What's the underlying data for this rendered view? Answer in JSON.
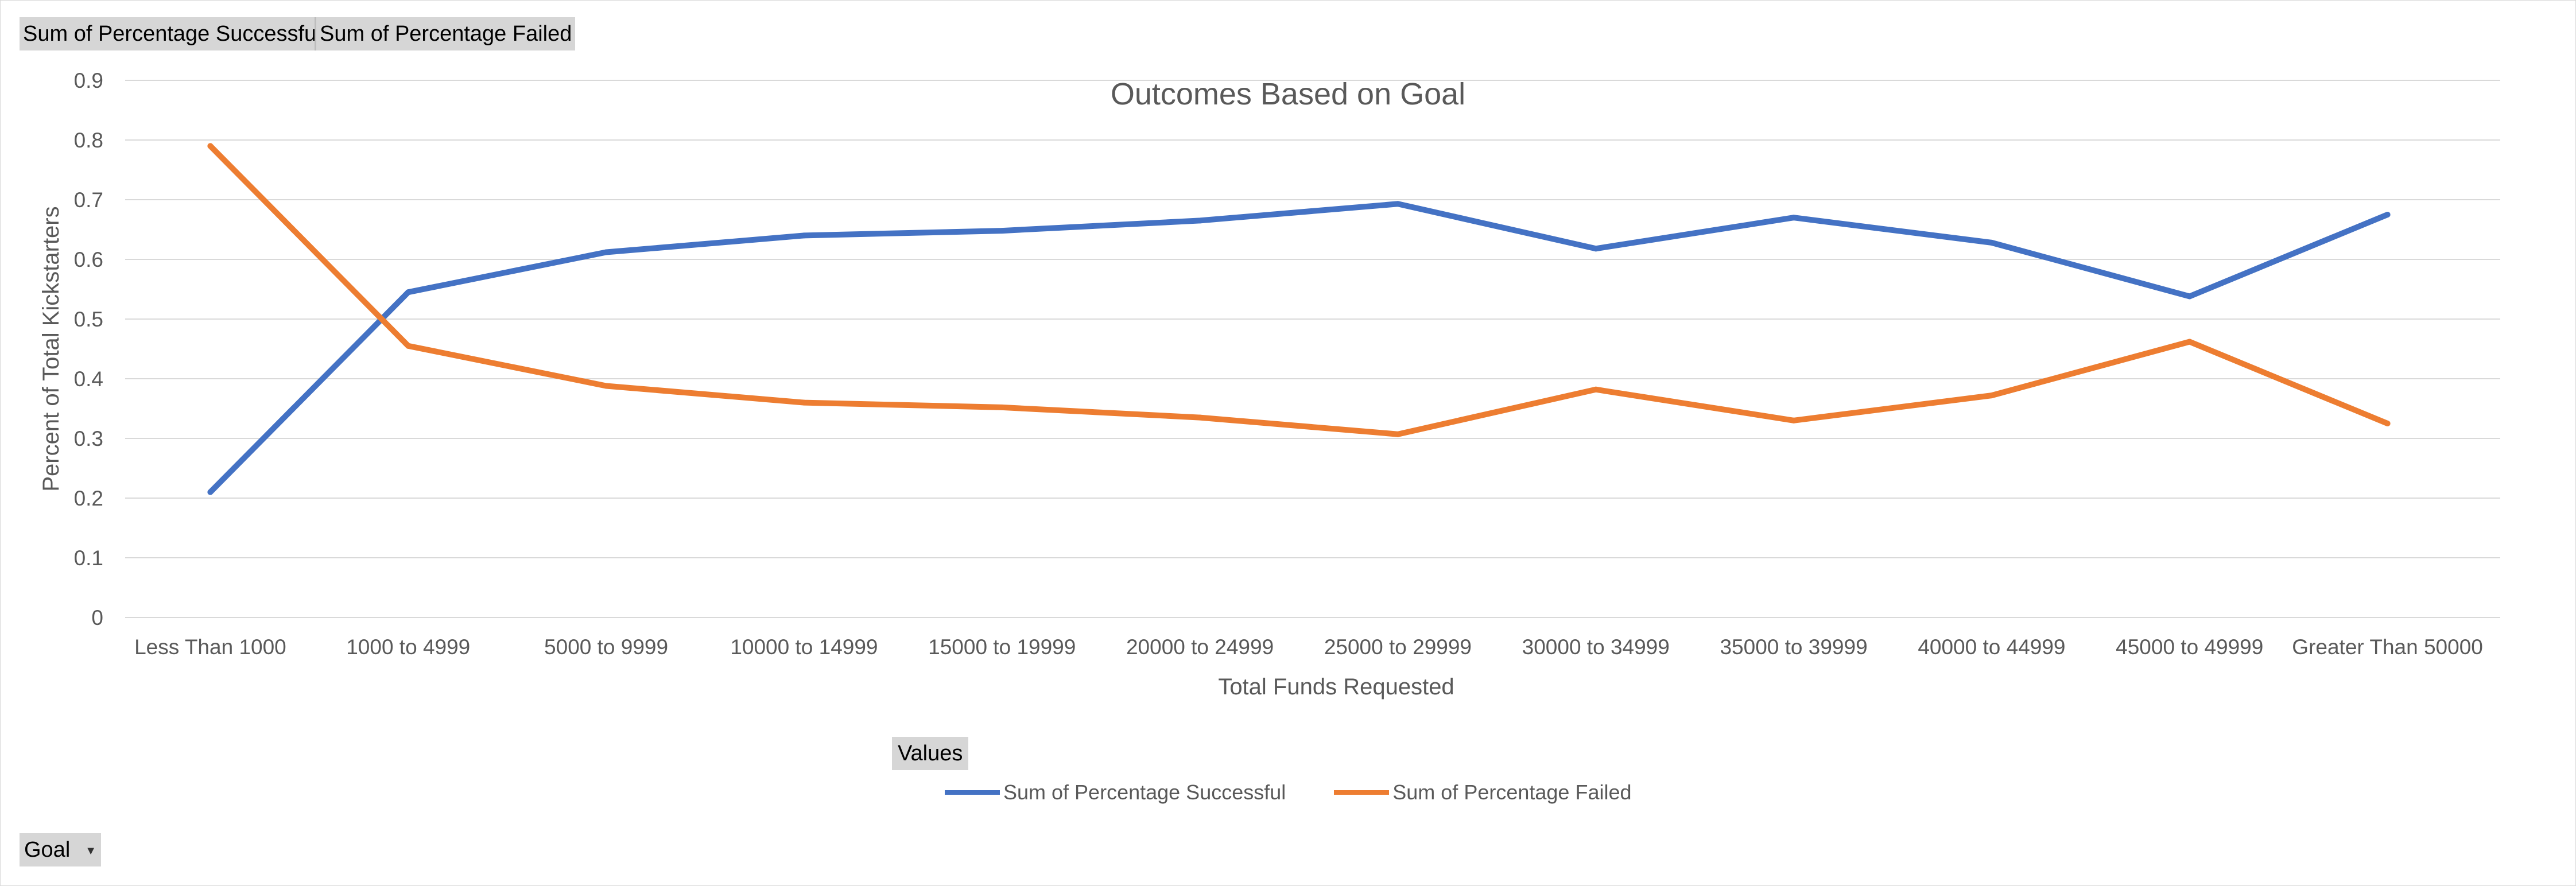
{
  "pivot_buttons": {
    "value_fields": [
      "Sum of Percentage  Successful",
      "Sum of Percentage  Failed"
    ],
    "values_label": "Values",
    "row_field_label": "Goal",
    "row_field_dropdown_icon": "dropdown-arrow-icon"
  },
  "colors": {
    "successful": "#4472C4",
    "failed": "#ED7D31",
    "gridline": "#d9d9d9",
    "text": "#595959"
  },
  "chart_data": {
    "type": "line",
    "title": "Outcomes Based on Goal",
    "xlabel": "Total Funds Requested",
    "ylabel": "Percent of Total Kickstarters",
    "categories": [
      "Less Than 1000",
      "1000 to 4999",
      "5000 to 9999",
      "10000 to 14999",
      "15000 to 19999",
      "20000 to 24999",
      "25000 to 29999",
      "30000 to 34999",
      "35000 to 39999",
      "40000 to 44999",
      "45000 to 49999",
      "Greater Than 50000"
    ],
    "ylim": [
      0,
      0.9
    ],
    "yticks": [
      0,
      0.1,
      0.2,
      0.3,
      0.4,
      0.5,
      0.6,
      0.7,
      0.8,
      0.9
    ],
    "ytick_labels": [
      "0",
      "0.1",
      "0.2",
      "0.3",
      "0.4",
      "0.5",
      "0.6",
      "0.7",
      "0.8",
      "0.9"
    ],
    "grid": true,
    "legend_position": "bottom",
    "series": [
      {
        "name": "Sum of Percentage Successful",
        "color": "#4472C4",
        "values": [
          0.21,
          0.545,
          0.612,
          0.64,
          0.648,
          0.665,
          0.693,
          0.618,
          0.67,
          0.628,
          0.538,
          0.675
        ]
      },
      {
        "name": "Sum of Percentage Failed",
        "color": "#ED7D31",
        "values": [
          0.79,
          0.455,
          0.388,
          0.36,
          0.352,
          0.335,
          0.307,
          0.382,
          0.33,
          0.372,
          0.462,
          0.325
        ]
      }
    ]
  }
}
